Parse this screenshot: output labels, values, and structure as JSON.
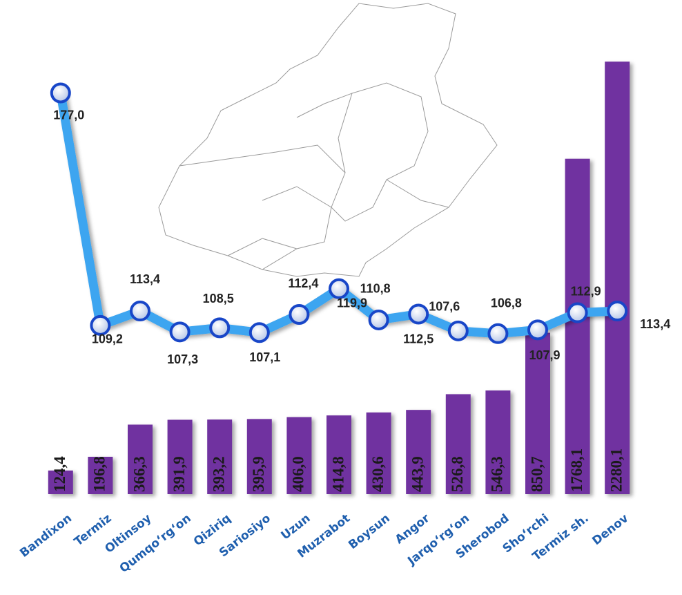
{
  "chart_data": {
    "type": "bar_line",
    "categories": [
      "Bandixon",
      "Termiz",
      "Oltinsoy",
      "Qumqo‘rg‘on",
      "Qiziriq",
      "Sariosiyo",
      "Uzun",
      "Muzrabot",
      "Boysun",
      "Angor",
      "Jarqo‘rg‘on",
      "Sherobod",
      "Sho‘rchi",
      "Termiz sh.",
      "Denov"
    ],
    "series": [
      {
        "type": "bar",
        "color": "#7030a0",
        "values": [
          124.4,
          196.8,
          366.3,
          391.9,
          393.2,
          395.9,
          406.0,
          414.8,
          430.6,
          443.9,
          526.8,
          546.3,
          850.7,
          1768.1,
          2280.1
        ],
        "value_labels": [
          "124,4",
          "196,8",
          "366,3",
          "391,9",
          "393,2",
          "395,9",
          "406,0",
          "414,8",
          "430,6",
          "443,9",
          "526,8",
          "546,3",
          "850,7",
          "1768,1",
          "2280,1"
        ]
      },
      {
        "type": "line",
        "axis": "y2",
        "color": "#3da5f0",
        "values": [
          177.0,
          109.2,
          113.4,
          107.3,
          108.5,
          107.1,
          112.4,
          119.9,
          110.8,
          112.5,
          107.6,
          106.8,
          107.9,
          112.9,
          113.4
        ],
        "value_labels": [
          "177,0",
          "109,2",
          "113,4",
          "107,3",
          "108,5",
          "107,1",
          "112,4",
          "119,9",
          "110,8",
          "112,5",
          "107,6",
          "106,8",
          "107,9",
          "112,9",
          "113,4"
        ]
      }
    ],
    "ylim": [
      0,
      2350
    ],
    "y2lim": [
      60,
      190
    ]
  }
}
